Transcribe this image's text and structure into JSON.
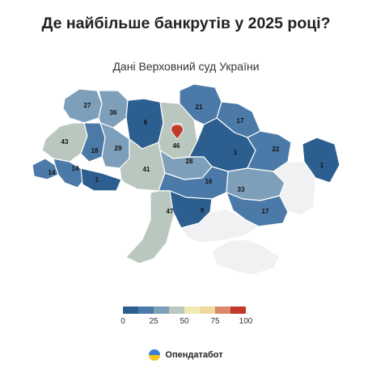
{
  "title": "Де найбільше банкрутів у 2025 році?",
  "subtitle": "Дані Верховний суд України",
  "brand": "Опендатабот",
  "colors": {
    "scale": [
      "#2c5f8f",
      "#4b7aa8",
      "#7e9fb9",
      "#b9c7bf",
      "#eeecb4",
      "#f0d8a0",
      "#d9876a",
      "#c0392b"
    ],
    "no_data": "#f1f1f3",
    "border": "#ffffff"
  },
  "legend": {
    "ticks": [
      "0",
      "25",
      "50",
      "75",
      "100"
    ]
  },
  "regions": [
    {
      "id": "volyn",
      "value": 27
    },
    {
      "id": "rivne",
      "value": 36
    },
    {
      "id": "zhytomyr",
      "value": 6
    },
    {
      "id": "kyiv-oblast",
      "value": 46
    },
    {
      "id": "kyiv-city",
      "value": 90
    },
    {
      "id": "chernihiv",
      "value": 21
    },
    {
      "id": "sumy",
      "value": 17
    },
    {
      "id": "lviv",
      "value": 43
    },
    {
      "id": "ternopil",
      "value": 18
    },
    {
      "id": "khmelnytskyi",
      "value": 29
    },
    {
      "id": "poltava",
      "value": 1
    },
    {
      "id": "kharkiv",
      "value": 22
    },
    {
      "id": "luhansk",
      "value": 1
    },
    {
      "id": "zakarpattia",
      "value": 14
    },
    {
      "id": "ivano-frankivsk",
      "value": 14
    },
    {
      "id": "chernivtsi",
      "value": 1
    },
    {
      "id": "vinnytsia",
      "value": 41
    },
    {
      "id": "cherkasy",
      "value": 28
    },
    {
      "id": "kirovohrad",
      "value": 16
    },
    {
      "id": "dnipropetrovsk",
      "value": 33
    },
    {
      "id": "donetsk",
      "value": null
    },
    {
      "id": "odesa",
      "value": 47
    },
    {
      "id": "mykolaiv",
      "value": 9
    },
    {
      "id": "zaporizhzhia",
      "value": 17
    },
    {
      "id": "kherson",
      "value": null
    },
    {
      "id": "crimea",
      "value": null
    }
  ]
}
